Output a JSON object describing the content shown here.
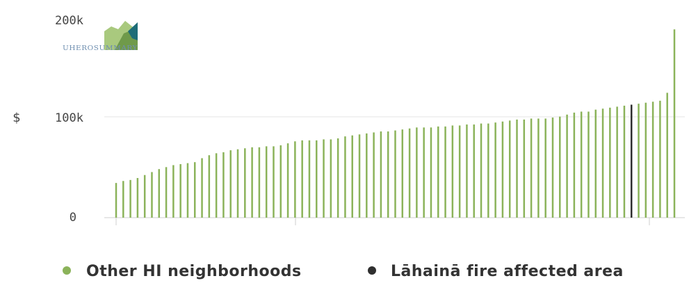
{
  "chart_data": {
    "type": "bar",
    "ylabel": "$",
    "ylim": [
      0,
      200000
    ],
    "yticks": [
      0,
      100000,
      200000
    ],
    "ytick_labels": [
      "0",
      "100k",
      "200k"
    ],
    "grid": "horizontal",
    "legend_position": "bottom",
    "colors": {
      "other": "#8bb35a",
      "lahaina": "#2f2f2f"
    },
    "legend": [
      {
        "key": "other",
        "label": "Other HI neighborhoods"
      },
      {
        "key": "lahaina",
        "label": "Lāhainā fire affected area"
      }
    ],
    "highlight_index": 72,
    "values": [
      35000,
      37000,
      38000,
      40000,
      43000,
      46000,
      49000,
      51000,
      53000,
      54000,
      55000,
      56000,
      60000,
      63000,
      65000,
      66000,
      68000,
      69000,
      70000,
      71000,
      71000,
      72000,
      72000,
      73000,
      75000,
      77000,
      78000,
      78000,
      78000,
      79000,
      79000,
      80000,
      82000,
      83000,
      84000,
      85000,
      86000,
      87000,
      87000,
      88000,
      89000,
      90000,
      91000,
      91000,
      91000,
      92000,
      92000,
      93000,
      93000,
      94000,
      94000,
      95000,
      95000,
      96000,
      97000,
      98000,
      99000,
      99000,
      100000,
      100000,
      100000,
      101000,
      102000,
      104000,
      106000,
      107000,
      107000,
      109000,
      110000,
      111000,
      112000,
      113000,
      114000,
      115000,
      116000,
      117000,
      118000,
      126000,
      190000
    ]
  },
  "logo": {
    "text": "UHEROSUMMARY"
  }
}
